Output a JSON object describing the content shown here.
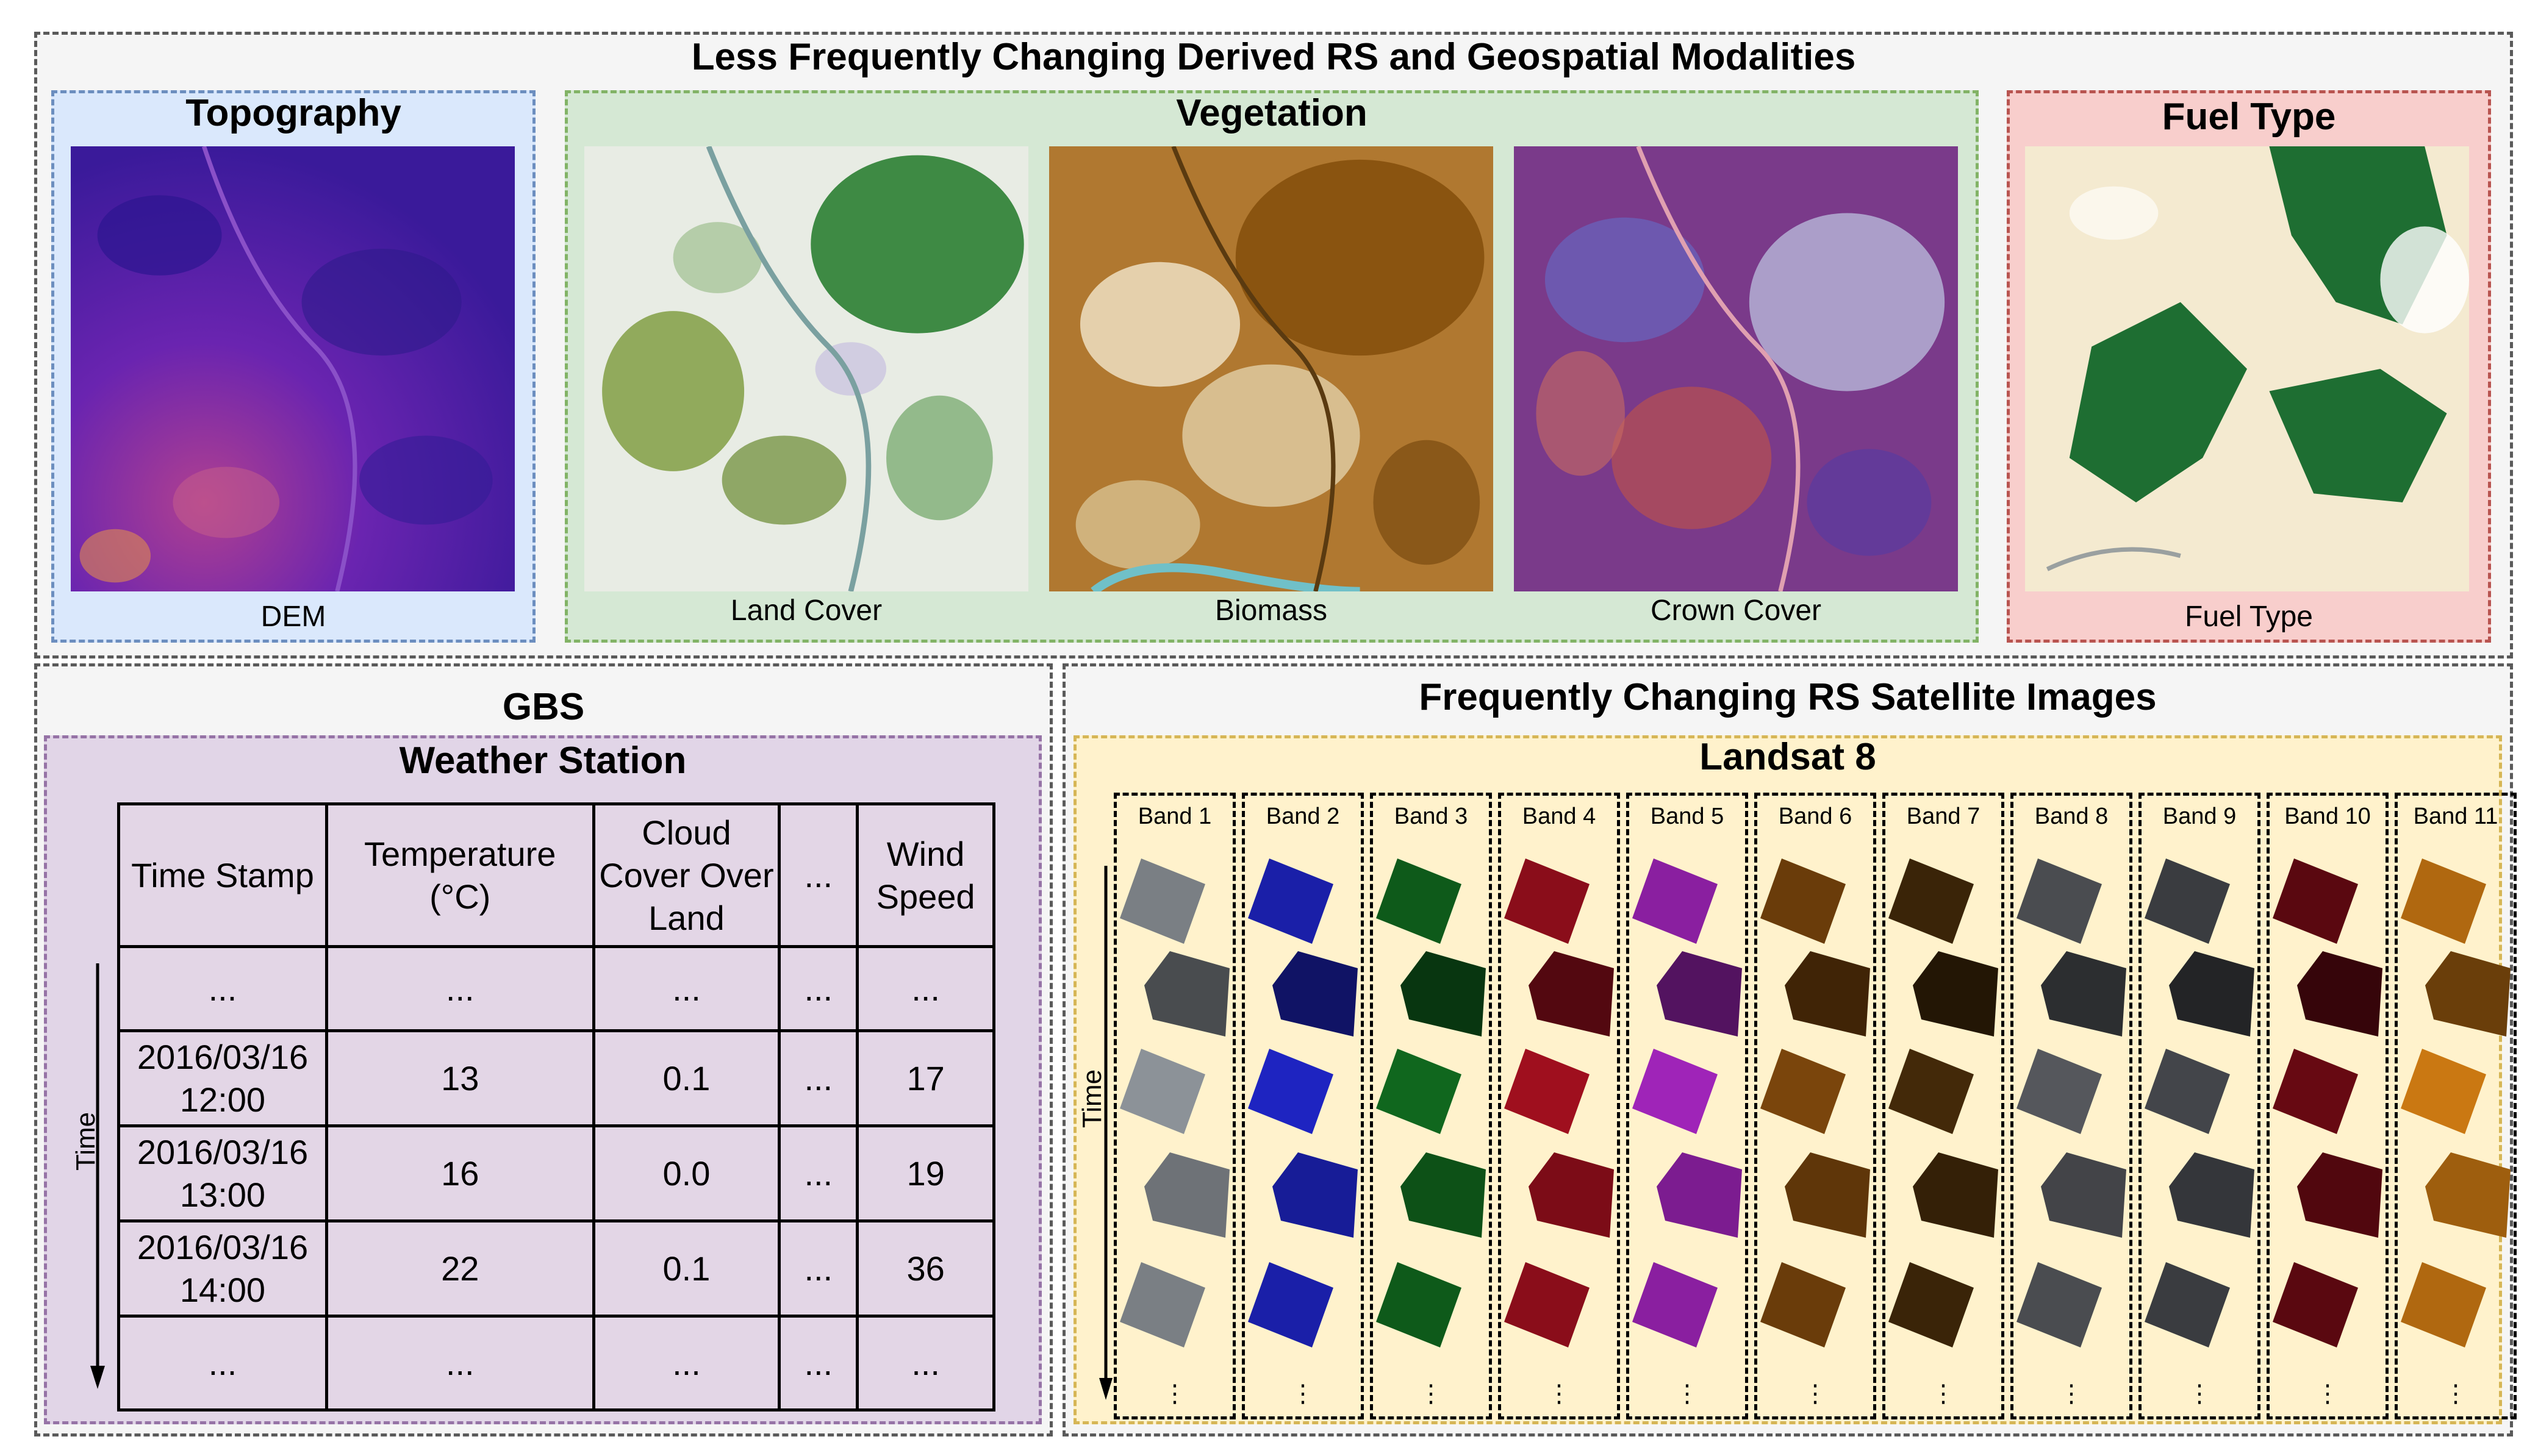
{
  "top_section": {
    "title": "Less Frequently Changing Derived RS and Geospatial Modalities",
    "topography": {
      "title": "Topography",
      "caption": "DEM"
    },
    "vegetation": {
      "title": "Vegetation",
      "captions": [
        "Land Cover",
        "Biomass",
        "Crown Cover"
      ]
    },
    "fuel_type": {
      "title": "Fuel Type",
      "caption": "Fuel Type"
    }
  },
  "gbs_section": {
    "title": "GBS",
    "station_title": "Weather Station",
    "time_label": "Time",
    "headers": [
      "Time Stamp",
      "Temperature (°C)",
      "Cloud Cover Over Land",
      "...",
      "Wind Speed"
    ],
    "rows": [
      [
        "...",
        "...",
        "...",
        "...",
        "..."
      ],
      [
        "2016/03/16 12:00",
        "13",
        "0.1",
        "...",
        "17"
      ],
      [
        "2016/03/16 13:00",
        "16",
        "0.0",
        "...",
        "19"
      ],
      [
        "2016/03/16 14:00",
        "22",
        "0.1",
        "...",
        "36"
      ],
      [
        "...",
        "...",
        "...",
        "...",
        "..."
      ]
    ]
  },
  "satellite_section": {
    "title": "Frequently Changing RS Satellite Images",
    "satellite_title": "Landsat 8",
    "time_label": "Time",
    "bands": [
      {
        "label": "Band 1",
        "color": "#7a7f84"
      },
      {
        "label": "Band 2",
        "color": "#1a1fa8"
      },
      {
        "label": "Band 3",
        "color": "#0e5a1a"
      },
      {
        "label": "Band 4",
        "color": "#8a0d1a"
      },
      {
        "label": "Band 5",
        "color": "#8a1fa0"
      },
      {
        "label": "Band 6",
        "color": "#6a3c0a"
      },
      {
        "label": "Band 7",
        "color": "#3a2408"
      },
      {
        "label": "Band 8",
        "color": "#4a4c50"
      },
      {
        "label": "Band 9",
        "color": "#3a3c40"
      },
      {
        "label": "Band 10",
        "color": "#5a0810"
      },
      {
        "label": "Band 11",
        "color": "#b06810"
      }
    ]
  },
  "colors": {
    "topography_bg": "#dae8fc",
    "vegetation_bg": "#d5e8d4",
    "fuel_bg": "#f8cecc",
    "station_bg": "#e1d5e7",
    "landsat_bg": "#fff2cc"
  }
}
